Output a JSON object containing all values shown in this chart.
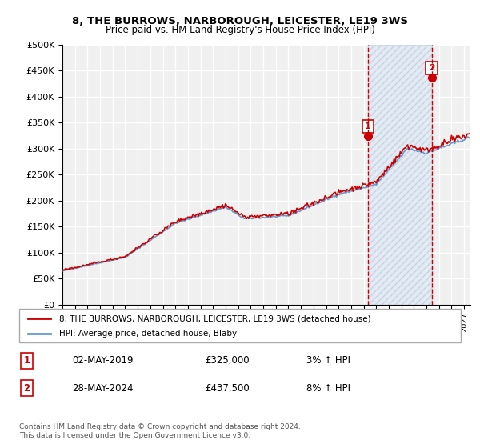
{
  "title": "8, THE BURROWS, NARBOROUGH, LEICESTER, LE19 3WS",
  "subtitle": "Price paid vs. HM Land Registry's House Price Index (HPI)",
  "ylim": [
    0,
    500000
  ],
  "yticks": [
    0,
    50000,
    100000,
    150000,
    200000,
    250000,
    300000,
    350000,
    400000,
    450000,
    500000
  ],
  "xlim_start": 1995.0,
  "xlim_end": 2027.5,
  "background_color": "#ffffff",
  "plot_bg_color": "#f0f0f0",
  "grid_color": "#ffffff",
  "hpi_color": "#6699cc",
  "price_color": "#cc0000",
  "sale1_date": 2019.33,
  "sale1_price": 325000,
  "sale1_label": "1",
  "sale2_date": 2024.41,
  "sale2_price": 437500,
  "sale2_label": "2",
  "legend_line1": "8, THE BURROWS, NARBOROUGH, LEICESTER, LE19 3WS (detached house)",
  "legend_line2": "HPI: Average price, detached house, Blaby",
  "table_row1": [
    "1",
    "02-MAY-2019",
    "£325,000",
    "3% ↑ HPI"
  ],
  "table_row2": [
    "2",
    "28-MAY-2024",
    "£437,500",
    "8% ↑ HPI"
  ],
  "footnote1": "Contains HM Land Registry data © Crown copyright and database right 2024.",
  "footnote2": "This data is licensed under the Open Government Licence v3.0.",
  "shade_start": 2019.33,
  "shade_end": 2024.41
}
